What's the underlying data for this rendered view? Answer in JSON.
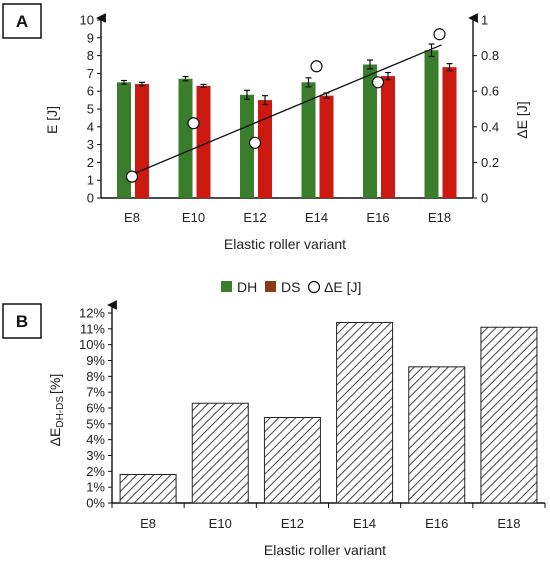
{
  "colors": {
    "dh": "#3a7d2a",
    "ds": "#cc1a10",
    "ds_legend": "#8b3a14",
    "axis": "#111111",
    "hatch": "#444444"
  },
  "chart_data": [
    {
      "panel": "A",
      "type": "bar",
      "categories": [
        "E8",
        "E10",
        "E12",
        "E14",
        "E16",
        "E18"
      ],
      "xlabel": "Elastic roller variant",
      "ylabel": "E [J]",
      "y2label": "ΔE [J]",
      "ylim": [
        0,
        10
      ],
      "y2lim": [
        0,
        1
      ],
      "yticks": [
        0,
        1,
        2,
        3,
        4,
        5,
        6,
        7,
        8,
        9,
        10
      ],
      "y2ticks": [
        "0",
        "0.2",
        "0.4",
        "0.6",
        "0.8",
        "1"
      ],
      "series": [
        {
          "name": "DH",
          "values": [
            6.5,
            6.7,
            5.8,
            6.5,
            7.5,
            8.3
          ],
          "errors": [
            0.1,
            0.12,
            0.25,
            0.25,
            0.25,
            0.35
          ]
        },
        {
          "name": "DS",
          "values": [
            6.4,
            6.3,
            5.5,
            5.75,
            6.85,
            7.35
          ],
          "errors": [
            0.1,
            0.08,
            0.25,
            0.15,
            0.2,
            0.2
          ]
        }
      ],
      "delta": {
        "name": "ΔE [J]",
        "values": [
          0.12,
          0.42,
          0.31,
          0.74,
          0.65,
          0.92
        ]
      },
      "trendline": {
        "x_from": "E8",
        "x_to": "E18",
        "y2_from": 0.13,
        "y2_to": 0.86
      },
      "legend": [
        "DH",
        "DS",
        "ΔE [J]"
      ],
      "legend_position": "bottom"
    },
    {
      "panel": "B",
      "type": "bar",
      "categories": [
        "E8",
        "E10",
        "E12",
        "E14",
        "E16",
        "E18"
      ],
      "xlabel": "Elastic roller variant",
      "ylabel_main": "ΔE",
      "ylabel_sub": "DH-DS",
      "ylabel_unit": "[%]",
      "ylim": [
        0,
        12
      ],
      "yticks": [
        "0%",
        "1%",
        "2%",
        "3%",
        "4%",
        "5%",
        "6%",
        "7%",
        "8%",
        "9%",
        "10%",
        "11%",
        "12%"
      ],
      "values": [
        1.8,
        6.3,
        5.4,
        11.4,
        8.6,
        11.1
      ],
      "fill": "hatched"
    }
  ]
}
